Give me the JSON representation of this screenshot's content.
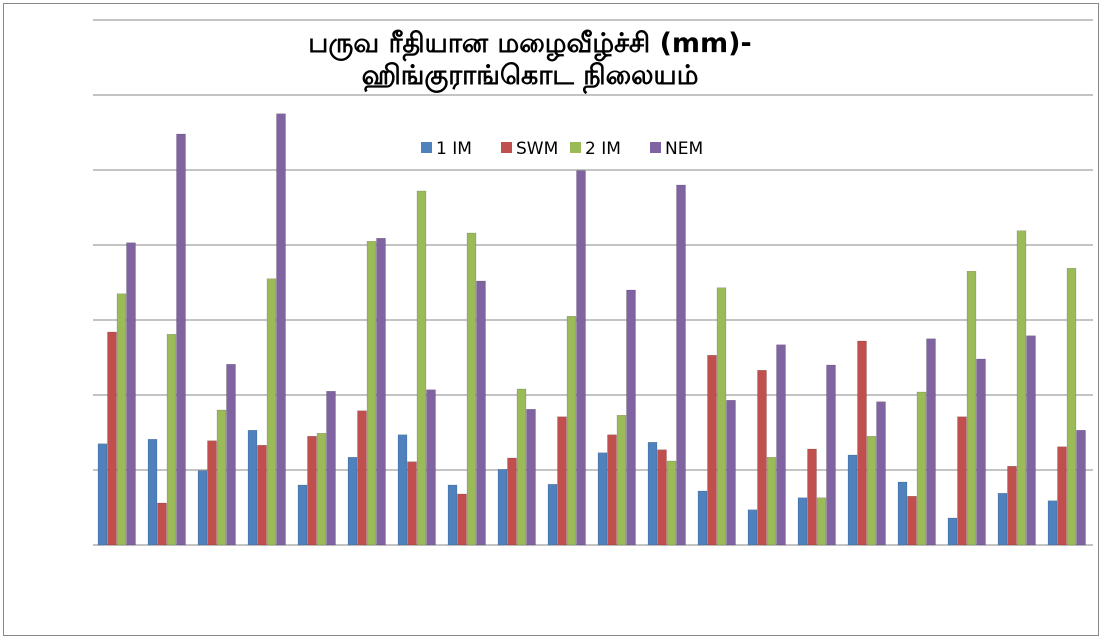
{
  "chart_data": {
    "type": "bar",
    "title": "பருவ ரீதியான மழைவீழ்ச்சி (mm)- ஹிங்குராங்கொட நிலையம்",
    "categories": [
      null,
      null,
      null,
      null,
      null,
      null,
      null,
      null,
      null,
      null,
      null,
      null,
      null,
      null,
      null,
      null,
      null,
      null,
      null,
      null
    ],
    "series": [
      {
        "name": "1 IM",
        "color": "#4f81bd",
        "values": [
          135,
          141,
          99,
          153,
          80,
          117,
          147,
          80,
          101,
          81,
          123,
          137,
          72,
          47,
          63,
          120,
          84,
          36,
          69,
          59
        ]
      },
      {
        "name": "SWM",
        "color": "#c0504d",
        "values": [
          284,
          56,
          139,
          133,
          145,
          179,
          111,
          68,
          116,
          171,
          147,
          127,
          253,
          233,
          128,
          272,
          65,
          171,
          105,
          131
        ]
      },
      {
        "name": "2 IM",
        "color": "#9bbb59",
        "values": [
          335,
          281,
          180,
          355,
          149,
          405,
          472,
          416,
          208,
          305,
          173,
          112,
          343,
          117,
          63,
          145,
          204,
          365,
          419,
          369
        ]
      },
      {
        "name": "NEM",
        "color": "#8064a2",
        "values": [
          403,
          548,
          241,
          575,
          205,
          409,
          207,
          352,
          181,
          499,
          340,
          480,
          193,
          267,
          240,
          191,
          275,
          248,
          279,
          153
        ]
      }
    ],
    "ylim": [
      0,
      700
    ],
    "yticks": [
      0,
      100,
      200,
      300,
      400,
      500,
      600,
      700
    ],
    "grid": true
  }
}
